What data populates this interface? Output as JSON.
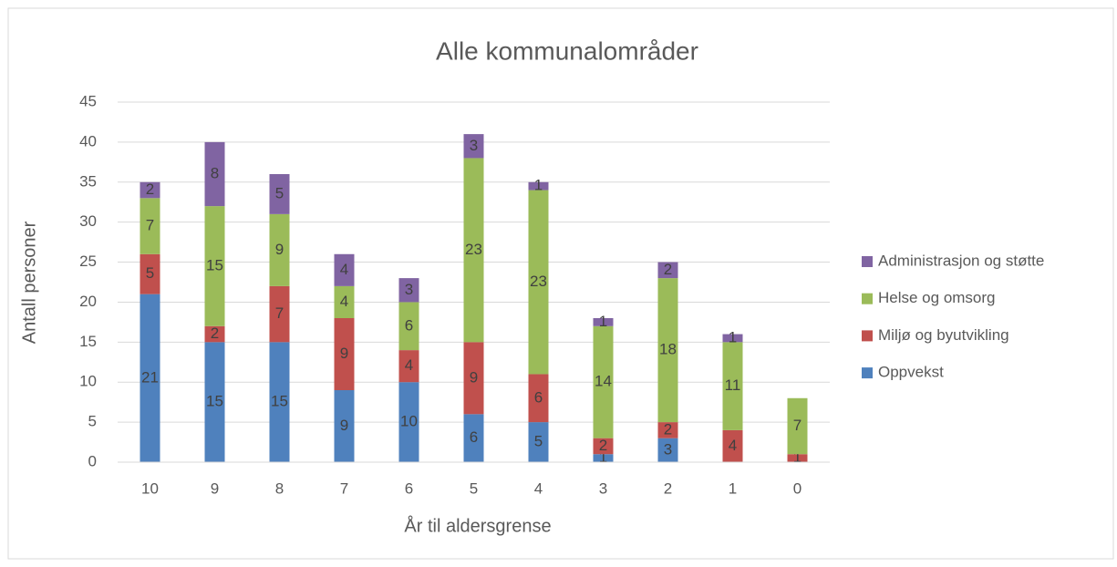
{
  "chart_data": {
    "type": "stacked_bar",
    "title": "Alle kommunalområder",
    "x_label": "År til aldersgrense",
    "y_label": "Antall personer",
    "categories": [
      "10",
      "9",
      "8",
      "7",
      "6",
      "5",
      "4",
      "3",
      "2",
      "1",
      "0"
    ],
    "series": [
      {
        "name": "Oppvekst",
        "color": "#4f81bd",
        "values": [
          21,
          15,
          15,
          9,
          10,
          6,
          5,
          1,
          3,
          null,
          null
        ]
      },
      {
        "name": "Miljø og byutvikling",
        "color": "#c0504d",
        "values": [
          5,
          2,
          7,
          9,
          4,
          9,
          6,
          2,
          2,
          4,
          1
        ]
      },
      {
        "name": "Helse og omsorg",
        "color": "#9bbb59",
        "values": [
          7,
          15,
          9,
          4,
          6,
          23,
          23,
          14,
          18,
          11,
          7
        ]
      },
      {
        "name": "Administrasjon og støtte",
        "color": "#8064a2",
        "values": [
          2,
          8,
          5,
          4,
          3,
          3,
          1,
          1,
          2,
          1,
          null
        ]
      }
    ],
    "ylim": [
      0,
      45
    ],
    "yticks": [
      0,
      5,
      10,
      15,
      20,
      25,
      30,
      35,
      40,
      45
    ],
    "grid": true,
    "legend": "right"
  }
}
